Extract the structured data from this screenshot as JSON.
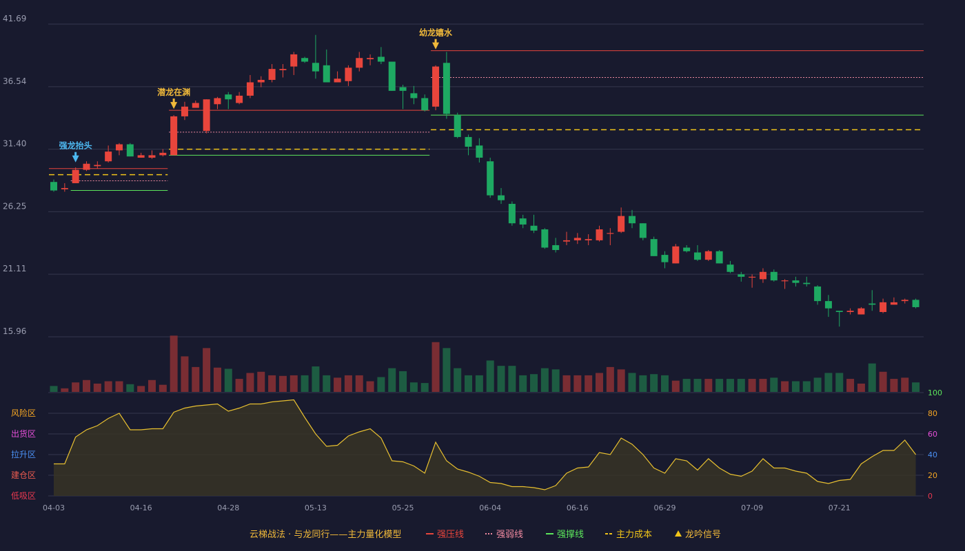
{
  "chart_data": {
    "type": "candlestick",
    "price_axis": {
      "ticks": [
        "41.69",
        "36.54",
        "31.40",
        "26.25",
        "21.11",
        "15.96"
      ],
      "min": 15.96,
      "max": 41.69
    },
    "oscillator_axis": {
      "ticks": [
        "100",
        "80",
        "60",
        "40",
        "20",
        "0"
      ],
      "min": 0,
      "max": 100
    },
    "x_tick_labels": [
      {
        "label": "04-03",
        "index": 0
      },
      {
        "label": "04-16",
        "index": 8
      },
      {
        "label": "04-28",
        "index": 16
      },
      {
        "label": "05-13",
        "index": 24
      },
      {
        "label": "05-25",
        "index": 32
      },
      {
        "label": "06-04",
        "index": 40
      },
      {
        "label": "06-16",
        "index": 48
      },
      {
        "label": "06-29",
        "index": 56
      },
      {
        "label": "07-09",
        "index": 64
      },
      {
        "label": "07-21",
        "index": 72
      }
    ],
    "candles": [
      [
        28.7,
        28.0,
        28.9,
        27.9
      ],
      [
        28.1,
        28.2,
        28.6,
        27.9
      ],
      [
        28.6,
        29.7,
        29.9,
        28.6
      ],
      [
        29.7,
        30.2,
        30.4,
        29.6
      ],
      [
        30.0,
        30.1,
        30.4,
        29.8
      ],
      [
        30.4,
        31.2,
        31.7,
        30.3
      ],
      [
        31.3,
        31.8,
        31.9,
        30.9
      ],
      [
        31.8,
        30.8,
        31.9,
        30.8
      ],
      [
        30.7,
        30.9,
        31.1,
        30.7
      ],
      [
        30.7,
        30.9,
        31.3,
        30.6
      ],
      [
        30.9,
        31.1,
        31.4,
        30.8
      ],
      [
        30.9,
        34.1,
        34.2,
        30.9
      ],
      [
        34.1,
        34.9,
        35.3,
        33.8
      ],
      [
        34.8,
        35.2,
        35.4,
        34.9
      ],
      [
        32.9,
        35.5,
        35.5,
        32.7
      ],
      [
        35.1,
        35.6,
        35.7,
        34.7
      ],
      [
        35.9,
        35.5,
        36.1,
        34.7
      ],
      [
        35.2,
        35.8,
        36.1,
        35.1
      ],
      [
        35.8,
        36.9,
        37.5,
        35.6
      ],
      [
        36.9,
        37.1,
        37.4,
        36.5
      ],
      [
        37.1,
        38.0,
        38.4,
        36.9
      ],
      [
        37.9,
        38.0,
        38.4,
        37.3
      ],
      [
        38.2,
        39.2,
        39.4,
        37.5
      ],
      [
        38.9,
        38.6,
        39.0,
        38.5
      ],
      [
        38.5,
        37.8,
        40.8,
        37.2
      ],
      [
        38.3,
        36.9,
        39.6,
        36.9
      ],
      [
        36.9,
        37.2,
        37.8,
        37.1
      ],
      [
        37.0,
        38.1,
        38.3,
        36.6
      ],
      [
        38.1,
        38.9,
        39.4,
        37.8
      ],
      [
        38.8,
        38.9,
        39.2,
        38.3
      ],
      [
        39.0,
        38.6,
        39.8,
        38.4
      ],
      [
        38.6,
        36.2,
        38.6,
        36.2
      ],
      [
        36.5,
        36.2,
        36.7,
        34.7
      ],
      [
        36.0,
        35.6,
        36.6,
        35.1
      ],
      [
        35.6,
        34.6,
        35.9,
        34.5
      ],
      [
        34.9,
        38.2,
        38.3,
        34.6
      ],
      [
        38.5,
        34.3,
        39.4,
        33.9
      ],
      [
        34.2,
        32.4,
        34.4,
        32.3
      ],
      [
        32.4,
        31.6,
        32.6,
        30.9
      ],
      [
        31.7,
        30.7,
        32.3,
        30.3
      ],
      [
        30.4,
        27.6,
        30.7,
        27.4
      ],
      [
        27.6,
        27.2,
        28.2,
        26.9
      ],
      [
        26.9,
        25.3,
        27.1,
        25.1
      ],
      [
        25.7,
        25.2,
        26.0,
        24.9
      ],
      [
        25.1,
        24.7,
        26.0,
        24.5
      ],
      [
        24.8,
        23.3,
        24.9,
        23.2
      ],
      [
        23.5,
        23.1,
        24.1,
        22.9
      ],
      [
        23.8,
        23.9,
        24.6,
        23.5
      ],
      [
        23.9,
        24.1,
        24.5,
        23.6
      ],
      [
        23.9,
        24.0,
        24.4,
        23.5
      ],
      [
        23.9,
        24.8,
        25.1,
        23.8
      ],
      [
        24.5,
        24.5,
        24.9,
        23.5
      ],
      [
        24.6,
        25.9,
        26.6,
        24.5
      ],
      [
        25.9,
        25.3,
        26.4,
        24.9
      ],
      [
        25.3,
        24.1,
        25.3,
        23.9
      ],
      [
        24.0,
        22.6,
        24.2,
        22.6
      ],
      [
        22.7,
        22.1,
        23.0,
        21.6
      ],
      [
        22.0,
        23.4,
        23.6,
        22.0
      ],
      [
        23.3,
        23.0,
        23.5,
        22.9
      ],
      [
        22.9,
        22.3,
        23.5,
        22.2
      ],
      [
        22.3,
        23.0,
        23.1,
        22.2
      ],
      [
        23.0,
        22.0,
        23.1,
        22.0
      ],
      [
        21.9,
        21.3,
        22.2,
        21.2
      ],
      [
        21.1,
        20.9,
        21.3,
        20.5
      ],
      [
        20.9,
        20.9,
        21.1,
        20.0
      ],
      [
        20.7,
        21.3,
        21.6,
        20.4
      ],
      [
        21.3,
        20.6,
        21.5,
        20.5
      ],
      [
        20.6,
        20.6,
        20.7,
        19.9
      ],
      [
        20.6,
        20.4,
        20.9,
        20.1
      ],
      [
        20.4,
        20.3,
        20.9,
        20.1
      ],
      [
        20.1,
        18.9,
        20.2,
        18.6
      ],
      [
        18.9,
        18.3,
        19.4,
        17.6
      ],
      [
        18.1,
        18.0,
        18.1,
        16.8
      ],
      [
        18.0,
        18.1,
        18.3,
        17.8
      ],
      [
        17.8,
        18.3,
        18.4,
        17.8
      ],
      [
        18.7,
        18.6,
        19.8,
        18.1
      ],
      [
        18.0,
        18.8,
        19.1,
        17.9
      ],
      [
        18.6,
        18.8,
        19.2,
        18.6
      ],
      [
        18.9,
        19.0,
        19.1,
        18.7
      ],
      [
        19.0,
        18.4,
        19.1,
        18.3
      ]
    ],
    "volume": [
      1,
      0.6,
      1.6,
      2,
      1.4,
      1.8,
      1.8,
      1.3,
      1,
      2,
      1.2,
      9.5,
      6,
      4.2,
      7.4,
      4.1,
      3.9,
      2.2,
      3.2,
      3.4,
      2.8,
      2.7,
      2.8,
      2.8,
      4.3,
      2.8,
      2.4,
      2.8,
      2.8,
      1.8,
      2.5,
      4,
      3.5,
      1.6,
      1.5,
      8.4,
      7.4,
      4,
      2.8,
      2.8,
      5.3,
      4.4,
      4.4,
      2.8,
      3,
      4,
      3.8,
      2.8,
      2.8,
      2.8,
      3.2,
      4.2,
      3.8,
      3.2,
      2.8,
      3,
      2.8,
      1.9,
      2.2,
      2.2,
      2.2,
      2.2,
      2.2,
      2.2,
      2.2,
      2.2,
      2.4,
      1.8,
      1.8,
      1.8,
      2.4,
      3.2,
      3.2,
      2.2,
      1.4,
      4.8,
      3.4,
      2.2,
      2.4,
      1.6
    ],
    "oscillator": [
      31,
      31,
      57,
      64,
      68,
      75,
      80,
      64,
      64,
      65,
      65,
      81,
      85,
      87,
      88,
      89,
      82,
      85,
      89,
      89,
      91,
      92,
      93,
      76,
      60,
      48,
      49,
      58,
      62,
      65,
      56,
      34,
      33,
      29,
      22,
      52,
      34,
      26,
      23,
      19,
      13,
      12,
      9,
      9,
      8,
      6,
      10,
      22,
      27,
      28,
      42,
      40,
      56,
      50,
      40,
      27,
      22,
      36,
      34,
      25,
      36,
      27,
      21,
      19,
      24,
      36,
      27,
      27,
      24,
      22,
      14,
      12,
      15,
      16,
      31,
      38,
      44,
      44,
      54,
      40
    ],
    "zone_labels": [
      {
        "label": "风险区",
        "color": "#f5a623"
      },
      {
        "label": "出货区",
        "color": "#e64fd9"
      },
      {
        "label": "拉升区",
        "color": "#4a8ff2"
      },
      {
        "label": "建仓区",
        "color": "#e85a4f"
      },
      {
        "label": "低吸区",
        "color": "#e8384f"
      }
    ],
    "signals": [
      {
        "label": "强龙抬头",
        "index": 2,
        "price": 30.2,
        "color": "#4db8f0"
      },
      {
        "label": "潜龙在渊",
        "index": 11,
        "price": 34.6,
        "color": "#f0b93a"
      },
      {
        "label": "幼龙嬉水",
        "index": 35,
        "price": 39.5,
        "color": "#f0b93a"
      }
    ],
    "levels": [
      {
        "kind": "press",
        "from": 0,
        "to": 10,
        "price": 29.8
      },
      {
        "kind": "weak",
        "from": 2,
        "to": 10,
        "price": 28.8
      },
      {
        "kind": "cost",
        "from": 0,
        "to": 10,
        "price": 29.3
      },
      {
        "kind": "support",
        "from": 2,
        "to": 10,
        "price": 28.0
      },
      {
        "kind": "press",
        "from": 11,
        "to": 34,
        "price": 34.6
      },
      {
        "kind": "weak",
        "from": 11,
        "to": 34,
        "price": 32.8
      },
      {
        "kind": "cost",
        "from": 11,
        "to": 34,
        "price": 31.4
      },
      {
        "kind": "support",
        "from": 11,
        "to": 34,
        "price": 30.9
      },
      {
        "kind": "press",
        "from": 35,
        "to": 80,
        "price": 39.5
      },
      {
        "kind": "weak",
        "from": 35,
        "to": 80,
        "price": 37.3
      },
      {
        "kind": "support",
        "from": 35,
        "to": 80,
        "price": 34.2
      },
      {
        "kind": "cost",
        "from": 35,
        "to": 80,
        "price": 33.0
      }
    ],
    "legend": [
      {
        "label": "云梯战法 · 与龙同行——主力量化模型",
        "kind": "title"
      },
      {
        "label": "强压线",
        "kind": "press"
      },
      {
        "label": "强弱线",
        "kind": "weak"
      },
      {
        "label": "强撑线",
        "kind": "support"
      },
      {
        "label": "主力成本",
        "kind": "cost"
      },
      {
        "label": "龙吟信号",
        "kind": "signal"
      }
    ],
    "colors": {
      "up": "#e8453c",
      "down": "#1ea962",
      "up_volume": "#7a2d33",
      "down_volume": "#1d5c42",
      "press": "#e8453c",
      "weak": "#f08aa0",
      "support": "#5ce65c",
      "cost": "#f0c419",
      "oscillator": "#e8c030",
      "grid": "#34374d",
      "axis_text": "#9a9db0",
      "background": "#181a2e"
    }
  }
}
